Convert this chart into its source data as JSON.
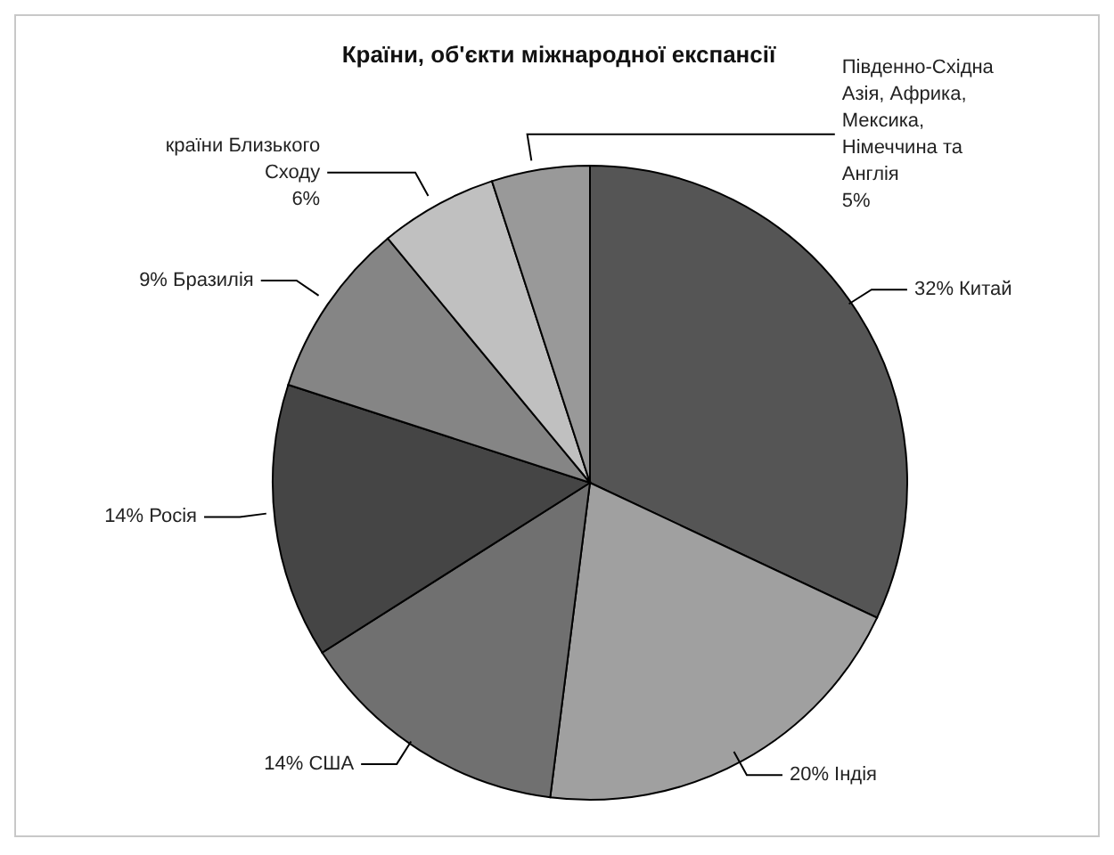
{
  "chart_data": {
    "type": "pie",
    "title": "Країни, об'єкти міжнародної експансії",
    "categories": [
      "Китай",
      "Індія",
      "США",
      "Росія",
      "Бразилія",
      "країни Близького Сходу",
      "Південно-Східна Азія, Африка, Мексика, Німеччина та Англія"
    ],
    "values": [
      32,
      20,
      14,
      14,
      9,
      6,
      5
    ],
    "value_labels": [
      "32%",
      "20%",
      "14%",
      "14%",
      "9%",
      "6%",
      "5%"
    ],
    "colors": [
      "#555555",
      "#a0a0a0",
      "#707070",
      "#454545",
      "#858585",
      "#c0c0c0",
      "#999999"
    ],
    "legend": false
  }
}
